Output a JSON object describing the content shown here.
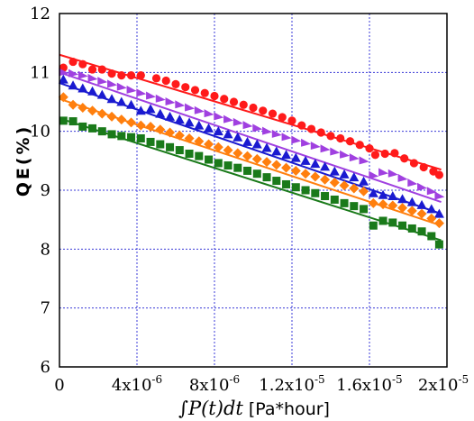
{
  "chart_data": {
    "type": "scatter",
    "title": "",
    "xlabel": {
      "prefix": "∫",
      "expr": "P(t)dt",
      "unit": " [Pa*hour]"
    },
    "ylabel": "QE(%)",
    "xlim": [
      0,
      2e-05
    ],
    "ylim": [
      6,
      12
    ],
    "grid": true,
    "legend": "none",
    "x_ticks": [
      {
        "value": 0,
        "label": "0"
      },
      {
        "value": 4e-06,
        "mant": "4x10",
        "exp": "-6"
      },
      {
        "value": 8e-06,
        "mant": "8x10",
        "exp": "-6"
      },
      {
        "value": 1.2e-05,
        "mant": "1.2x10",
        "exp": "-5"
      },
      {
        "value": 1.6e-05,
        "mant": "1.6x10",
        "exp": "-5"
      },
      {
        "value": 2e-05,
        "mant": "2x10",
        "exp": "-5"
      }
    ],
    "y_ticks": [
      {
        "value": 6,
        "label": "6"
      },
      {
        "value": 7,
        "label": "7"
      },
      {
        "value": 8,
        "label": "8"
      },
      {
        "value": 9,
        "label": "9"
      },
      {
        "value": 10,
        "label": "10"
      },
      {
        "value": 11,
        "label": "11"
      },
      {
        "value": 12,
        "label": "12"
      }
    ],
    "series": [
      {
        "marker": "circle",
        "color": "#ff1a1a",
        "fit": [
          11.3,
          9.35
        ],
        "points": [
          [
            2e-07,
            11.08
          ],
          [
            7e-07,
            11.18
          ],
          [
            1.2e-06,
            11.14
          ],
          [
            1.7e-06,
            11.05
          ],
          [
            2.2e-06,
            11.05
          ],
          [
            2.7e-06,
            10.98
          ],
          [
            3.2e-06,
            10.95
          ],
          [
            3.7e-06,
            10.95
          ],
          [
            4.2e-06,
            10.95
          ],
          [
            5e-06,
            10.9
          ],
          [
            5.5e-06,
            10.86
          ],
          [
            6e-06,
            10.8
          ],
          [
            6.5e-06,
            10.75
          ],
          [
            7e-06,
            10.7
          ],
          [
            7.5e-06,
            10.65
          ],
          [
            8e-06,
            10.6
          ],
          [
            8.5e-06,
            10.55
          ],
          [
            9e-06,
            10.5
          ],
          [
            9.5e-06,
            10.45
          ],
          [
            1e-05,
            10.4
          ],
          [
            1.05e-05,
            10.35
          ],
          [
            1.1e-05,
            10.3
          ],
          [
            1.15e-05,
            10.24
          ],
          [
            1.2e-05,
            10.18
          ],
          [
            1.25e-05,
            10.1
          ],
          [
            1.3e-05,
            10.04
          ],
          [
            1.35e-05,
            9.98
          ],
          [
            1.4e-05,
            9.92
          ],
          [
            1.45e-05,
            9.88
          ],
          [
            1.5e-05,
            9.83
          ],
          [
            1.55e-05,
            9.77
          ],
          [
            1.6e-05,
            9.71
          ],
          [
            1.63e-05,
            9.6
          ],
          [
            1.68e-05,
            9.62
          ],
          [
            1.73e-05,
            9.63
          ],
          [
            1.78e-05,
            9.54
          ],
          [
            1.83e-05,
            9.46
          ],
          [
            1.88e-05,
            9.39
          ],
          [
            1.93e-05,
            9.32
          ],
          [
            1.96e-05,
            9.26
          ]
        ]
      },
      {
        "marker": "triangle-right",
        "color": "#a040e0",
        "fit": [
          11.0,
          8.8
        ],
        "points": [
          [
            2e-07,
            11.0
          ],
          [
            7e-07,
            10.98
          ],
          [
            1.2e-06,
            10.95
          ],
          [
            1.7e-06,
            10.9
          ],
          [
            2.2e-06,
            10.85
          ],
          [
            2.7e-06,
            10.8
          ],
          [
            3.2e-06,
            10.75
          ],
          [
            3.7e-06,
            10.7
          ],
          [
            4.2e-06,
            10.65
          ],
          [
            4.7e-06,
            10.6
          ],
          [
            5.2e-06,
            10.55
          ],
          [
            5.7e-06,
            10.5
          ],
          [
            6.2e-06,
            10.45
          ],
          [
            6.7e-06,
            10.4
          ],
          [
            7.2e-06,
            10.35
          ],
          [
            7.7e-06,
            10.3
          ],
          [
            8.2e-06,
            10.25
          ],
          [
            8.7e-06,
            10.2
          ],
          [
            9.2e-06,
            10.15
          ],
          [
            9.7e-06,
            10.1
          ],
          [
            1.02e-05,
            10.05
          ],
          [
            1.07e-05,
            10.0
          ],
          [
            1.12e-05,
            9.95
          ],
          [
            1.17e-05,
            9.9
          ],
          [
            1.22e-05,
            9.85
          ],
          [
            1.27e-05,
            9.8
          ],
          [
            1.32e-05,
            9.75
          ],
          [
            1.37e-05,
            9.7
          ],
          [
            1.42e-05,
            9.65
          ],
          [
            1.47e-05,
            9.6
          ],
          [
            1.52e-05,
            9.55
          ],
          [
            1.57e-05,
            9.5
          ],
          [
            1.62e-05,
            9.25
          ],
          [
            1.67e-05,
            9.3
          ],
          [
            1.72e-05,
            9.28
          ],
          [
            1.77e-05,
            9.2
          ],
          [
            1.82e-05,
            9.12
          ],
          [
            1.87e-05,
            9.05
          ],
          [
            1.92e-05,
            8.98
          ],
          [
            1.96e-05,
            8.9
          ]
        ]
      },
      {
        "marker": "triangle-up",
        "color": "#1a1ad0",
        "fit": [
          10.82,
          8.6
        ],
        "points": [
          [
            2e-07,
            10.88
          ],
          [
            7e-07,
            10.78
          ],
          [
            1.2e-06,
            10.73
          ],
          [
            1.7e-06,
            10.68
          ],
          [
            2.2e-06,
            10.62
          ],
          [
            2.7e-06,
            10.55
          ],
          [
            3.2e-06,
            10.5
          ],
          [
            3.7e-06,
            10.45
          ],
          [
            4.2e-06,
            10.35
          ],
          [
            4.7e-06,
            10.38
          ],
          [
            5.2e-06,
            10.3
          ],
          [
            5.7e-06,
            10.25
          ],
          [
            6.2e-06,
            10.2
          ],
          [
            6.7e-06,
            10.15
          ],
          [
            7.2e-06,
            10.1
          ],
          [
            7.7e-06,
            10.05
          ],
          [
            8.2e-06,
            10.0
          ],
          [
            8.7e-06,
            9.95
          ],
          [
            9.2e-06,
            9.9
          ],
          [
            9.7e-06,
            9.82
          ],
          [
            1.02e-05,
            9.78
          ],
          [
            1.07e-05,
            9.72
          ],
          [
            1.12e-05,
            9.66
          ],
          [
            1.17e-05,
            9.6
          ],
          [
            1.22e-05,
            9.55
          ],
          [
            1.27e-05,
            9.5
          ],
          [
            1.32e-05,
            9.45
          ],
          [
            1.37e-05,
            9.4
          ],
          [
            1.42e-05,
            9.32
          ],
          [
            1.47e-05,
            9.27
          ],
          [
            1.52e-05,
            9.22
          ],
          [
            1.57e-05,
            9.15
          ],
          [
            1.62e-05,
            8.95
          ],
          [
            1.67e-05,
            8.92
          ],
          [
            1.72e-05,
            8.9
          ],
          [
            1.77e-05,
            8.85
          ],
          [
            1.82e-05,
            8.8
          ],
          [
            1.87e-05,
            8.75
          ],
          [
            1.92e-05,
            8.68
          ],
          [
            1.96e-05,
            8.6
          ]
        ]
      },
      {
        "marker": "diamond",
        "color": "#ff7f0e",
        "fit": [
          10.55,
          8.4
        ],
        "points": [
          [
            2e-07,
            10.58
          ],
          [
            7e-07,
            10.45
          ],
          [
            1.2e-06,
            10.4
          ],
          [
            1.7e-06,
            10.35
          ],
          [
            2.2e-06,
            10.3
          ],
          [
            2.7e-06,
            10.25
          ],
          [
            3.2e-06,
            10.2
          ],
          [
            3.7e-06,
            10.15
          ],
          [
            4.2e-06,
            10.1
          ],
          [
            4.7e-06,
            10.08
          ],
          [
            5.2e-06,
            10.03
          ],
          [
            5.7e-06,
            9.98
          ],
          [
            6.2e-06,
            9.93
          ],
          [
            6.7e-06,
            9.88
          ],
          [
            7.2e-06,
            9.83
          ],
          [
            7.7e-06,
            9.78
          ],
          [
            8.2e-06,
            9.73
          ],
          [
            8.7e-06,
            9.68
          ],
          [
            9.2e-06,
            9.63
          ],
          [
            9.7e-06,
            9.58
          ],
          [
            1.02e-05,
            9.53
          ],
          [
            1.07e-05,
            9.48
          ],
          [
            1.12e-05,
            9.43
          ],
          [
            1.17e-05,
            9.38
          ],
          [
            1.22e-05,
            9.33
          ],
          [
            1.27e-05,
            9.28
          ],
          [
            1.32e-05,
            9.23
          ],
          [
            1.37e-05,
            9.18
          ],
          [
            1.42e-05,
            9.13
          ],
          [
            1.47e-05,
            9.08
          ],
          [
            1.52e-05,
            9.03
          ],
          [
            1.57e-05,
            8.98
          ],
          [
            1.62e-05,
            8.78
          ],
          [
            1.67e-05,
            8.76
          ],
          [
            1.72e-05,
            8.74
          ],
          [
            1.77e-05,
            8.7
          ],
          [
            1.82e-05,
            8.65
          ],
          [
            1.87e-05,
            8.6
          ],
          [
            1.92e-05,
            8.52
          ],
          [
            1.96e-05,
            8.44
          ]
        ]
      },
      {
        "marker": "square",
        "color": "#1a7a1a",
        "fit": [
          10.22,
          8.15
        ],
        "points": [
          [
            2e-07,
            10.18
          ],
          [
            7e-07,
            10.17
          ],
          [
            1.2e-06,
            10.08
          ],
          [
            1.7e-06,
            10.05
          ],
          [
            2.2e-06,
            10.0
          ],
          [
            2.7e-06,
            9.95
          ],
          [
            3.2e-06,
            9.92
          ],
          [
            3.7e-06,
            9.9
          ],
          [
            4.2e-06,
            9.88
          ],
          [
            4.7e-06,
            9.82
          ],
          [
            5.2e-06,
            9.78
          ],
          [
            5.7e-06,
            9.73
          ],
          [
            6.2e-06,
            9.68
          ],
          [
            6.7e-06,
            9.62
          ],
          [
            7.2e-06,
            9.58
          ],
          [
            7.7e-06,
            9.52
          ],
          [
            8.2e-06,
            9.46
          ],
          [
            8.7e-06,
            9.42
          ],
          [
            9.2e-06,
            9.38
          ],
          [
            9.7e-06,
            9.33
          ],
          [
            1.02e-05,
            9.28
          ],
          [
            1.07e-05,
            9.22
          ],
          [
            1.12e-05,
            9.16
          ],
          [
            1.17e-05,
            9.1
          ],
          [
            1.22e-05,
            9.05
          ],
          [
            1.27e-05,
            9.0
          ],
          [
            1.32e-05,
            8.95
          ],
          [
            1.37e-05,
            8.9
          ],
          [
            1.42e-05,
            8.84
          ],
          [
            1.47e-05,
            8.78
          ],
          [
            1.52e-05,
            8.73
          ],
          [
            1.57e-05,
            8.68
          ],
          [
            1.62e-05,
            8.4
          ],
          [
            1.67e-05,
            8.48
          ],
          [
            1.72e-05,
            8.45
          ],
          [
            1.77e-05,
            8.4
          ],
          [
            1.82e-05,
            8.35
          ],
          [
            1.87e-05,
            8.3
          ],
          [
            1.92e-05,
            8.22
          ],
          [
            1.96e-05,
            8.08
          ]
        ]
      }
    ]
  }
}
